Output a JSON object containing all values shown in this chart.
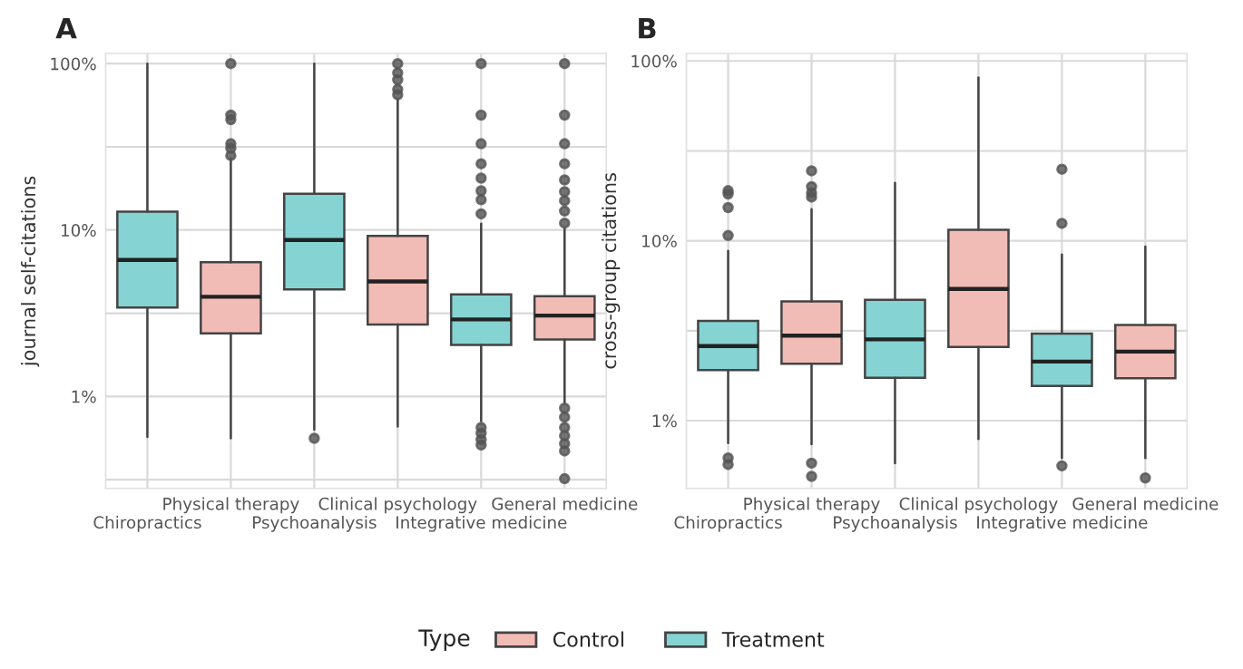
{
  "chart_data": [
    {
      "type": "box",
      "title": "A",
      "ylabel": "journal self-citations",
      "categories": [
        "Chiropractics",
        "Physical therapy",
        "Psychoanalysis",
        "Clinical psychology",
        "Integrative medicine",
        "General medicine"
      ],
      "log": true,
      "ylim": [
        0.28,
        115
      ],
      "yticks": [
        {
          "value": 0.316,
          "label": null
        },
        {
          "value": 1,
          "label": "1%"
        },
        {
          "value": 3.16,
          "label": null
        },
        {
          "value": 10,
          "label": "10%"
        },
        {
          "value": 31.6,
          "label": null
        },
        {
          "value": 100,
          "label": "100%"
        }
      ],
      "grid": true,
      "legend": "bottom",
      "legend_title": "Type",
      "series": [
        {
          "name": "Control",
          "color": "#f2bcb6",
          "boxes": [
            null,
            {
              "low": 0.56,
              "q1": 2.39,
              "median": 3.97,
              "q3": 6.4,
              "high": 26.9,
              "outliers": [
                100,
                49,
                46,
                33,
                31,
                28
              ]
            },
            null,
            {
              "low": 0.66,
              "q1": 2.7,
              "median": 4.9,
              "q3": 9.2,
              "high": 61,
              "outliers": [
                100,
                88,
                80,
                70,
                65
              ]
            },
            null,
            {
              "low": 0.92,
              "q1": 2.2,
              "median": 3.06,
              "q3": 4.0,
              "high": 10.2,
              "outliers": [
                100,
                49,
                33,
                25,
                20,
                17,
                15,
                13,
                11,
                0.85,
                0.75,
                0.65,
                0.58,
                0.52,
                0.47,
                0.32
              ]
            }
          ]
        },
        {
          "name": "Treatment",
          "color": "#86d3d3",
          "boxes": [
            {
              "low": 0.57,
              "q1": 3.42,
              "median": 6.6,
              "q3": 12.9,
              "high": 100
            },
            null,
            {
              "low": 0.63,
              "q1": 4.4,
              "median": 8.7,
              "q3": 16.5,
              "high": 100,
              "outliers": [
                0.56
              ]
            },
            null,
            {
              "low": 0.71,
              "q1": 2.04,
              "median": 2.9,
              "q3": 4.1,
              "high": 10.9,
              "outliers": [
                100,
                49,
                33,
                25,
                20.5,
                17.2,
                15.2,
                12.5,
                0.65,
                0.6,
                0.55,
                0.51
              ]
            },
            null
          ]
        }
      ]
    },
    {
      "type": "box",
      "title": "B",
      "ylabel": "cross-group citations",
      "categories": [
        "Chiropractics",
        "Physical therapy",
        "Psychoanalysis",
        "Clinical psychology",
        "Integrative medicine",
        "General medicine"
      ],
      "log": true,
      "ylim": [
        0.42,
        110
      ],
      "yticks": [
        {
          "value": 1,
          "label": "1%"
        },
        {
          "value": 3.16,
          "label": null
        },
        {
          "value": 10,
          "label": "10%"
        },
        {
          "value": 31.6,
          "label": null
        },
        {
          "value": 100,
          "label": "100%"
        }
      ],
      "grid": true,
      "series": [
        {
          "name": "Control",
          "color": "#f2bcb6",
          "boxes": [
            null,
            {
              "low": 0.74,
              "q1": 2.07,
              "median": 2.97,
              "q3": 4.6,
              "high": 15,
              "outliers": [
                17.5,
                18.5,
                20,
                24.5,
                0.58,
                0.49
              ]
            },
            null,
            {
              "low": 0.79,
              "q1": 2.57,
              "median": 5.4,
              "q3": 11.5,
              "high": 81
            },
            null,
            {
              "low": 0.62,
              "q1": 1.72,
              "median": 2.42,
              "q3": 3.4,
              "high": 9.3,
              "outliers": [
                0.48
              ]
            }
          ]
        },
        {
          "name": "Treatment",
          "color": "#86d3d3",
          "boxes": [
            {
              "low": 0.75,
              "q1": 1.91,
              "median": 2.6,
              "q3": 3.59,
              "high": 8.8,
              "outliers": [
                10.7,
                15.3,
                18.2,
                19,
                0.62,
                0.57
              ]
            },
            null,
            {
              "low": 0.58,
              "q1": 1.73,
              "median": 2.83,
              "q3": 4.7,
              "high": 21
            },
            null,
            {
              "low": 0.62,
              "q1": 1.56,
              "median": 2.13,
              "q3": 3.05,
              "high": 8.4,
              "outliers": [
                12.5,
                25,
                0.56
              ]
            },
            null
          ]
        }
      ]
    }
  ]
}
